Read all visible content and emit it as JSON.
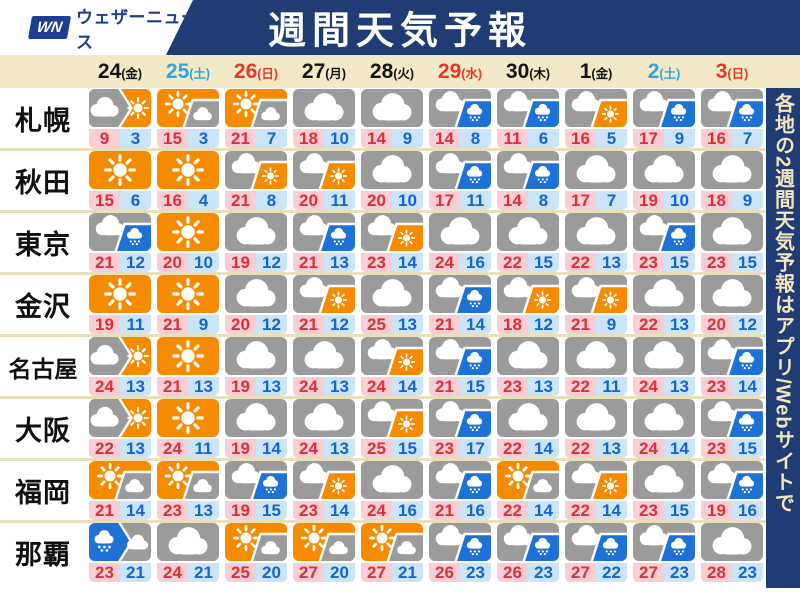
{
  "header": {
    "logo_wn": "WN",
    "logo_brand": "ウェザーニュース",
    "title": "週間天気予報"
  },
  "side_note": "各地の2週間天気予報はアプリ/Webサイトで",
  "dates": [
    {
      "day": "24",
      "weekday": "(金)",
      "color": "black"
    },
    {
      "day": "25",
      "weekday": "(土)",
      "color": "blue"
    },
    {
      "day": "26",
      "weekday": "(日)",
      "color": "red"
    },
    {
      "day": "27",
      "weekday": "(月)",
      "color": "black"
    },
    {
      "day": "28",
      "weekday": "(火)",
      "color": "black"
    },
    {
      "day": "29",
      "weekday": "(水)",
      "color": "red"
    },
    {
      "day": "30",
      "weekday": "(木)",
      "color": "black"
    },
    {
      "day": "1",
      "weekday": "(金)",
      "color": "black"
    },
    {
      "day": "2",
      "weekday": "(土)",
      "color": "blue"
    },
    {
      "day": "3",
      "weekday": "(日)",
      "color": "red"
    }
  ],
  "colors": {
    "navy": "#203c74",
    "brand_blue": "#1d3e92",
    "beige": "#f3e9c6",
    "separator": "#e9dfba",
    "saturday_blue": "#2ba6e8",
    "sunday_red": "#e5372b",
    "sun_orange": "#f78b00",
    "cloud_gray": "#9b9b9b",
    "rain_blue": "#1e71d5",
    "temp_high_bg": "#f8cdd3",
    "temp_high_text": "#dc2f38",
    "temp_low_bg": "#cce4f7",
    "temp_low_text": "#1465cf",
    "side_text_cream": "#f1e6bd"
  },
  "chart_data": {
    "type": "table",
    "title": "週間天気予報",
    "columns": [
      "24(金)",
      "25(土)",
      "26(日)",
      "27(月)",
      "28(火)",
      "29(水)",
      "30(木)",
      "1(金)",
      "2(土)",
      "3(日)"
    ],
    "icon_codes": [
      "sunny",
      "cloudy",
      "cloud_then_sun",
      "rain_then_cloud",
      "sun_later_cloud",
      "cloud_later_sun",
      "cloud_later_rain"
    ],
    "rows": [
      {
        "city": "札幌",
        "cells": [
          {
            "icon": "cloud_then_sun",
            "hi": 9,
            "lo": 3
          },
          {
            "icon": "sun_later_cloud",
            "hi": 15,
            "lo": 3
          },
          {
            "icon": "sun_later_cloud",
            "hi": 21,
            "lo": 7
          },
          {
            "icon": "cloudy",
            "hi": 18,
            "lo": 10
          },
          {
            "icon": "cloudy",
            "hi": 14,
            "lo": 9
          },
          {
            "icon": "cloud_later_rain",
            "hi": 14,
            "lo": 8
          },
          {
            "icon": "cloud_later_rain",
            "hi": 11,
            "lo": 6
          },
          {
            "icon": "cloud_later_sun",
            "hi": 16,
            "lo": 5
          },
          {
            "icon": "cloud_later_rain",
            "hi": 17,
            "lo": 9
          },
          {
            "icon": "cloud_later_rain",
            "hi": 16,
            "lo": 7
          }
        ]
      },
      {
        "city": "秋田",
        "cells": [
          {
            "icon": "sunny",
            "hi": 15,
            "lo": 6
          },
          {
            "icon": "sunny",
            "hi": 16,
            "lo": 4
          },
          {
            "icon": "cloud_later_sun",
            "hi": 21,
            "lo": 8
          },
          {
            "icon": "cloud_later_sun",
            "hi": 20,
            "lo": 11
          },
          {
            "icon": "cloudy",
            "hi": 20,
            "lo": 10
          },
          {
            "icon": "cloud_later_rain",
            "hi": 17,
            "lo": 11
          },
          {
            "icon": "cloud_later_rain",
            "hi": 14,
            "lo": 8
          },
          {
            "icon": "cloudy",
            "hi": 17,
            "lo": 7
          },
          {
            "icon": "cloudy",
            "hi": 19,
            "lo": 10
          },
          {
            "icon": "cloudy",
            "hi": 18,
            "lo": 9
          }
        ]
      },
      {
        "city": "東京",
        "cells": [
          {
            "icon": "cloud_later_rain",
            "hi": 21,
            "lo": 12
          },
          {
            "icon": "sunny",
            "hi": 20,
            "lo": 10
          },
          {
            "icon": "cloudy",
            "hi": 19,
            "lo": 12
          },
          {
            "icon": "cloud_later_rain",
            "hi": 21,
            "lo": 13
          },
          {
            "icon": "cloud_later_sun",
            "hi": 23,
            "lo": 14
          },
          {
            "icon": "cloudy",
            "hi": 24,
            "lo": 16
          },
          {
            "icon": "cloudy",
            "hi": 22,
            "lo": 15
          },
          {
            "icon": "cloudy",
            "hi": 22,
            "lo": 13
          },
          {
            "icon": "cloud_later_rain",
            "hi": 23,
            "lo": 15
          },
          {
            "icon": "cloudy",
            "hi": 23,
            "lo": 15
          }
        ]
      },
      {
        "city": "金沢",
        "cells": [
          {
            "icon": "sunny",
            "hi": 19,
            "lo": 11
          },
          {
            "icon": "sunny",
            "hi": 21,
            "lo": 9
          },
          {
            "icon": "cloudy",
            "hi": 20,
            "lo": 12
          },
          {
            "icon": "cloud_later_sun",
            "hi": 21,
            "lo": 12
          },
          {
            "icon": "cloudy",
            "hi": 25,
            "lo": 13
          },
          {
            "icon": "cloud_later_rain",
            "hi": 21,
            "lo": 14
          },
          {
            "icon": "cloud_later_sun",
            "hi": 18,
            "lo": 12
          },
          {
            "icon": "cloud_later_sun",
            "hi": 21,
            "lo": 9
          },
          {
            "icon": "cloudy",
            "hi": 22,
            "lo": 13
          },
          {
            "icon": "cloudy",
            "hi": 20,
            "lo": 12
          }
        ]
      },
      {
        "city": "名古屋",
        "cells": [
          {
            "icon": "cloud_then_sun",
            "hi": 24,
            "lo": 13
          },
          {
            "icon": "sunny",
            "hi": 21,
            "lo": 13
          },
          {
            "icon": "cloudy",
            "hi": 19,
            "lo": 13
          },
          {
            "icon": "cloudy",
            "hi": 24,
            "lo": 13
          },
          {
            "icon": "cloud_later_sun",
            "hi": 24,
            "lo": 14
          },
          {
            "icon": "cloud_later_rain",
            "hi": 21,
            "lo": 15
          },
          {
            "icon": "cloudy",
            "hi": 23,
            "lo": 13
          },
          {
            "icon": "cloudy",
            "hi": 22,
            "lo": 11
          },
          {
            "icon": "cloudy",
            "hi": 24,
            "lo": 13
          },
          {
            "icon": "cloud_later_rain",
            "hi": 23,
            "lo": 14
          }
        ]
      },
      {
        "city": "大阪",
        "cells": [
          {
            "icon": "cloud_then_sun",
            "hi": 22,
            "lo": 13
          },
          {
            "icon": "sunny",
            "hi": 24,
            "lo": 11
          },
          {
            "icon": "cloudy",
            "hi": 19,
            "lo": 14
          },
          {
            "icon": "cloudy",
            "hi": 24,
            "lo": 13
          },
          {
            "icon": "cloud_later_sun",
            "hi": 25,
            "lo": 15
          },
          {
            "icon": "cloud_later_rain",
            "hi": 23,
            "lo": 17
          },
          {
            "icon": "cloudy",
            "hi": 22,
            "lo": 14
          },
          {
            "icon": "cloudy",
            "hi": 22,
            "lo": 13
          },
          {
            "icon": "cloudy",
            "hi": 24,
            "lo": 14
          },
          {
            "icon": "cloud_later_rain",
            "hi": 23,
            "lo": 15
          }
        ]
      },
      {
        "city": "福岡",
        "cells": [
          {
            "icon": "sun_later_cloud",
            "hi": 21,
            "lo": 14
          },
          {
            "icon": "sun_later_cloud",
            "hi": 23,
            "lo": 13
          },
          {
            "icon": "cloud_later_rain",
            "hi": 19,
            "lo": 15
          },
          {
            "icon": "cloud_later_sun",
            "hi": 23,
            "lo": 14
          },
          {
            "icon": "cloudy",
            "hi": 24,
            "lo": 16
          },
          {
            "icon": "cloud_later_rain",
            "hi": 21,
            "lo": 16
          },
          {
            "icon": "sun_later_cloud",
            "hi": 22,
            "lo": 14
          },
          {
            "icon": "cloud_later_sun",
            "hi": 22,
            "lo": 14
          },
          {
            "icon": "cloudy",
            "hi": 23,
            "lo": 15
          },
          {
            "icon": "cloud_later_rain",
            "hi": 19,
            "lo": 16
          }
        ]
      },
      {
        "city": "那覇",
        "cells": [
          {
            "icon": "rain_then_cloud",
            "hi": 23,
            "lo": 21
          },
          {
            "icon": "cloudy",
            "hi": 24,
            "lo": 21
          },
          {
            "icon": "sun_later_cloud",
            "hi": 25,
            "lo": 20
          },
          {
            "icon": "sun_later_cloud",
            "hi": 27,
            "lo": 20
          },
          {
            "icon": "sun_later_cloud",
            "hi": 27,
            "lo": 21
          },
          {
            "icon": "cloud_later_rain",
            "hi": 26,
            "lo": 23
          },
          {
            "icon": "cloud_later_rain",
            "hi": 26,
            "lo": 23
          },
          {
            "icon": "cloud_later_rain",
            "hi": 27,
            "lo": 22
          },
          {
            "icon": "cloud_later_rain",
            "hi": 27,
            "lo": 23
          },
          {
            "icon": "cloudy",
            "hi": 28,
            "lo": 23
          }
        ]
      }
    ]
  }
}
